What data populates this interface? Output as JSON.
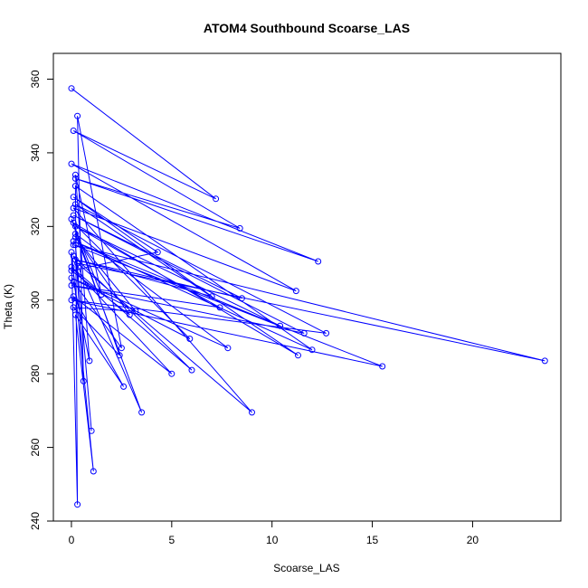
{
  "chart_data": {
    "type": "line",
    "title": "ATOM4 Southbound Scoarse_LAS",
    "xlabel": "Scoarse_LAS",
    "ylabel": "Theta (K)",
    "xlim": [
      -0.9,
      24.4
    ],
    "ylim": [
      240,
      367
    ],
    "xticks": [
      0,
      5,
      10,
      15,
      20
    ],
    "yticks": [
      240,
      260,
      280,
      300,
      320,
      340,
      360
    ],
    "grid": false,
    "series_color": "#0000ff",
    "marker": "open-circle",
    "series": [
      {
        "x": [
          0.0,
          7.2,
          0.1,
          8.4,
          0.2,
          12.3,
          0.0,
          11.2,
          0.1,
          9.0,
          0.3,
          23.6,
          0.1,
          15.5,
          0.0,
          12.7,
          0.2,
          11.3,
          0.1,
          5.9,
          0.0,
          7.8,
          0.2,
          3.5,
          0.1,
          6.0,
          0.0,
          5.0,
          0.1,
          2.6,
          0.2,
          1.1,
          0.0,
          0.3,
          0.2,
          12.0,
          0.1,
          10.4,
          0.2,
          7.4,
          0.0,
          11.6,
          0.1,
          8.5,
          0.2,
          7.0,
          0.1,
          4.3,
          0.0,
          2.9,
          0.2,
          3.2,
          0.1,
          2.4,
          0.0,
          1.5,
          0.2,
          0.9,
          0.1,
          2.5,
          0.3,
          0.6,
          0.2,
          1.0
        ],
        "y": [
          357.5,
          327.5,
          346,
          319.5,
          333,
          310.5,
          337,
          302.5,
          325,
          269.5,
          310,
          283.5,
          315,
          282,
          300,
          291,
          326,
          285,
          321,
          289.5,
          306,
          287,
          318,
          269.5,
          312,
          281,
          309,
          280,
          301,
          276.5,
          296,
          253.5,
          313,
          244.5,
          331,
          286.5,
          316,
          293,
          320,
          298,
          304,
          291,
          323,
          300.5,
          311,
          301,
          328,
          313,
          308,
          296,
          317,
          297,
          298,
          285,
          322,
          301.5,
          334,
          283.5,
          305,
          287,
          350,
          278,
          315,
          264.5
        ]
      }
    ]
  }
}
